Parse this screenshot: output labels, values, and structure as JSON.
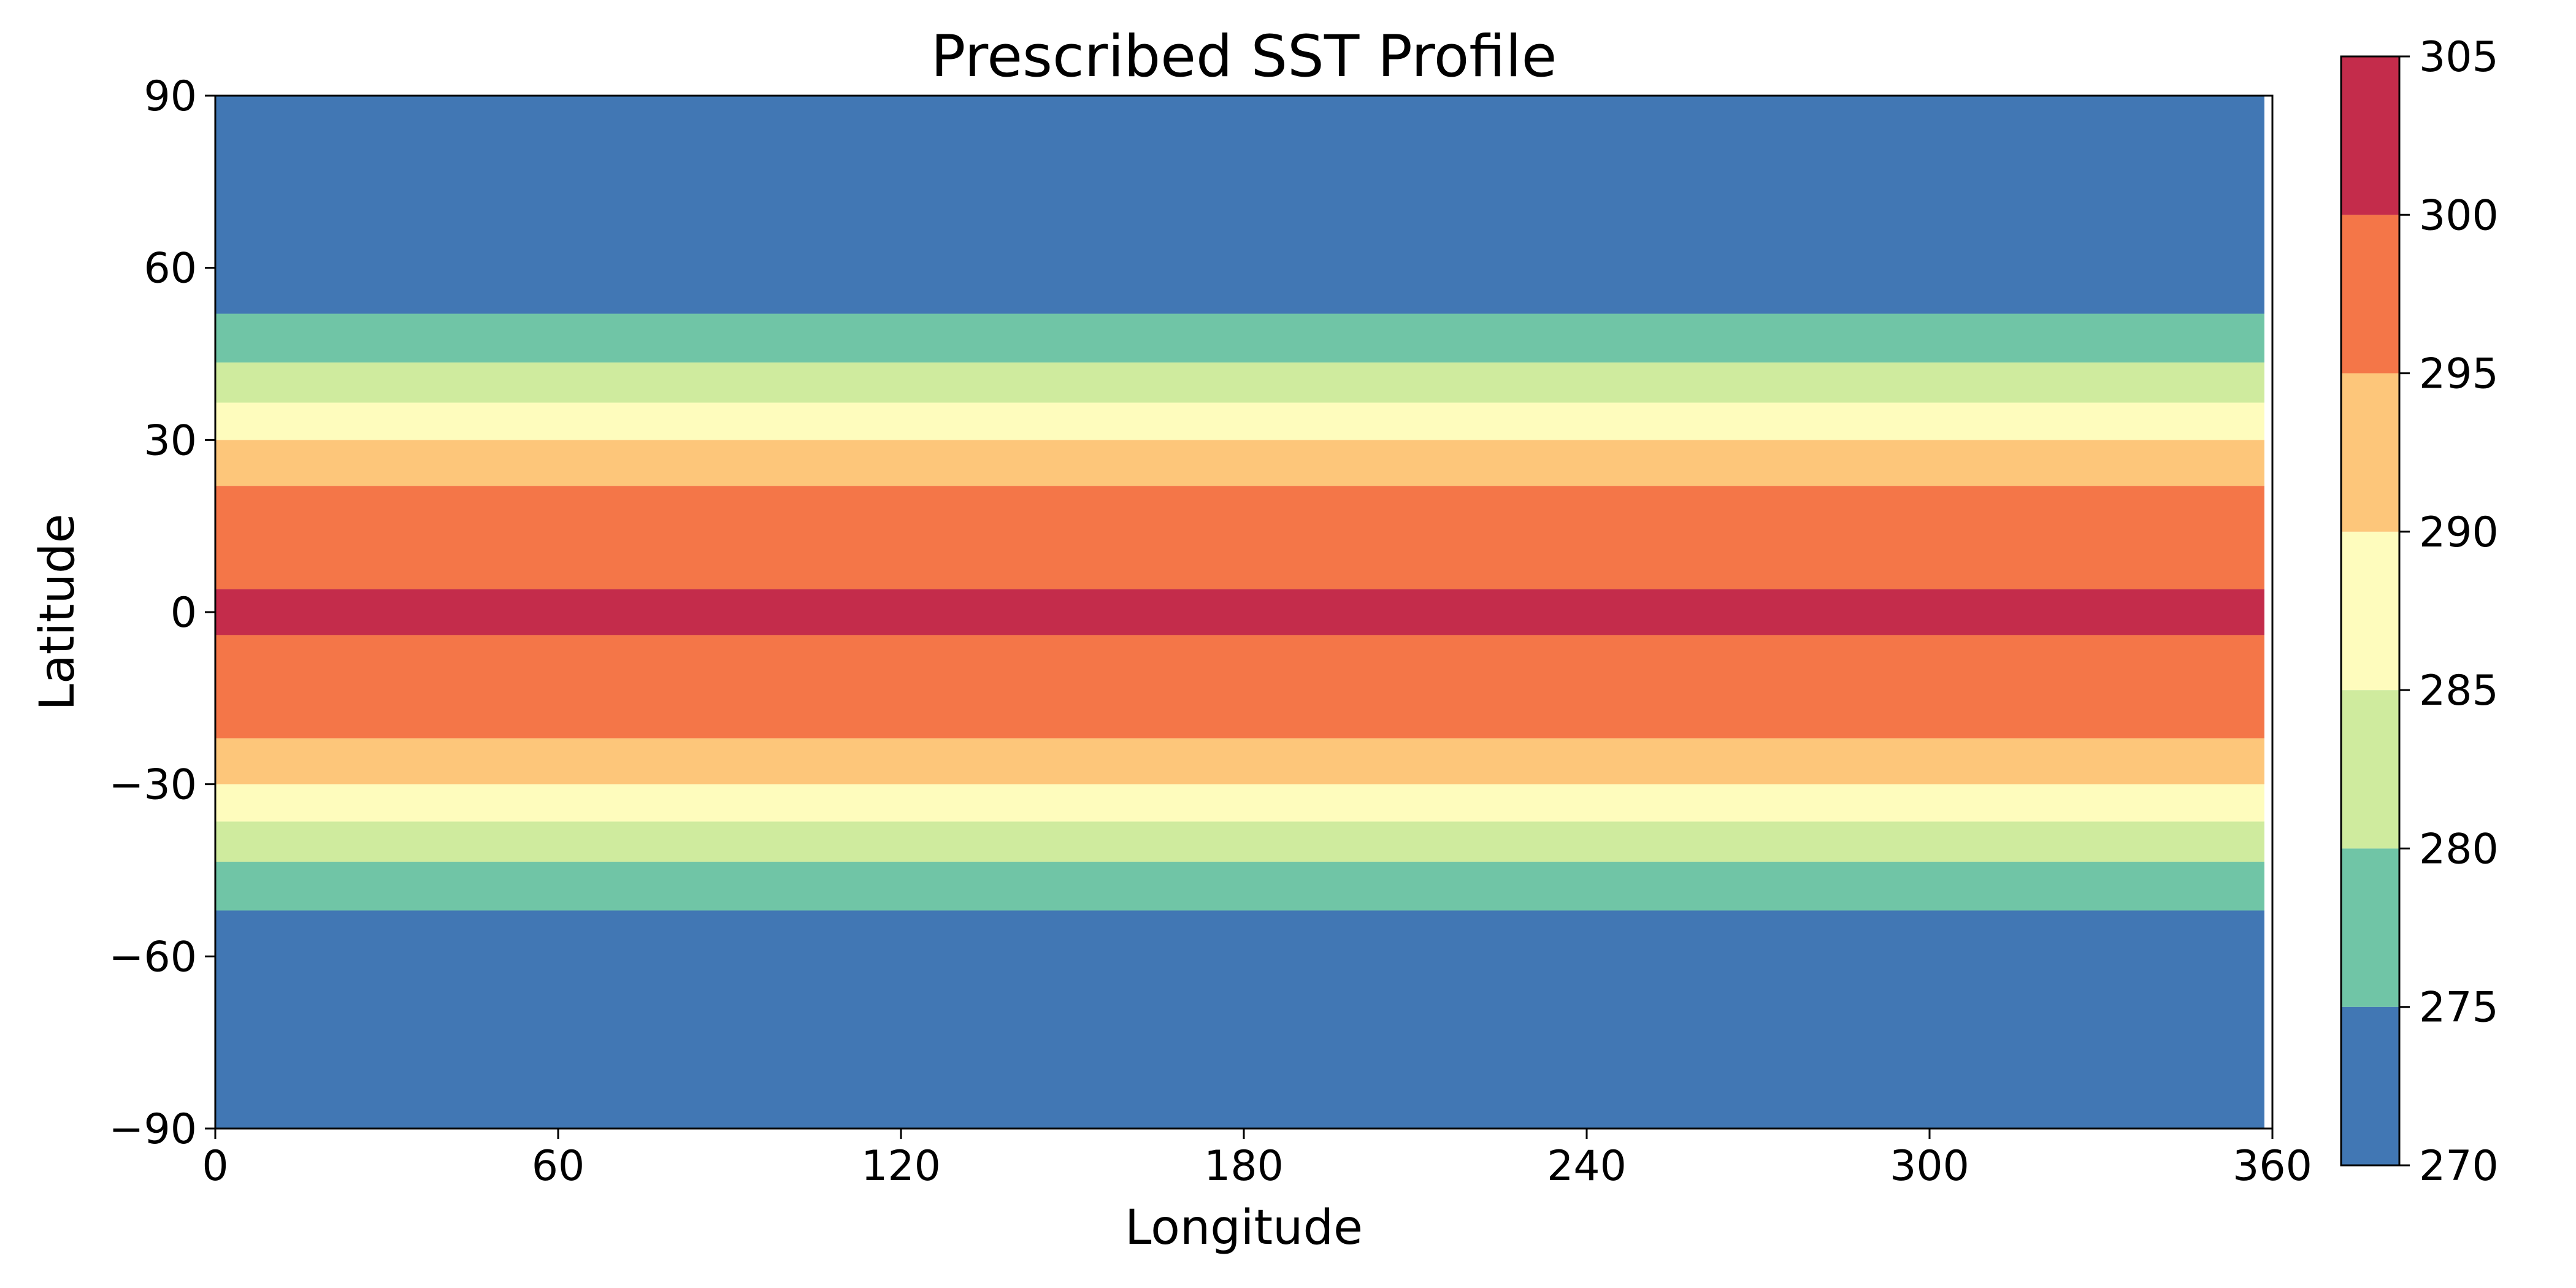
{
  "chart_data": {
    "type": "heatmap",
    "title": "Prescribed SST Profile",
    "xlabel": "Longitude",
    "ylabel": "Latitude",
    "xlim": [
      0,
      360
    ],
    "ylim": [
      -90,
      90
    ],
    "x_ticks": [
      0,
      60,
      120,
      180,
      240,
      300,
      360
    ],
    "y_ticks": [
      -90,
      -60,
      -30,
      0,
      30,
      60,
      90
    ],
    "x_tick_labels": [
      "0",
      "60",
      "120",
      "180",
      "240",
      "300",
      "360"
    ],
    "y_tick_labels": [
      "−90",
      "−60",
      "−30",
      "0",
      "30",
      "60",
      "90"
    ],
    "data_x_extent": [
      0,
      358.6
    ],
    "colorbar": {
      "levels": [
        270,
        275,
        280,
        285,
        290,
        295,
        300,
        305
      ],
      "tick_labels": [
        "270",
        "275",
        "280",
        "285",
        "290",
        "295",
        "300",
        "305"
      ],
      "colors": [
        "#4177b4",
        "#70c5a6",
        "#cfeb9e",
        "#fefcbd",
        "#fdc67a",
        "#f47648",
        "#c42c4b"
      ]
    },
    "bands": [
      {
        "lat_min": 52,
        "lat_max": 90,
        "sst_range": [
          270,
          275
        ]
      },
      {
        "lat_min": 43.5,
        "lat_max": 52,
        "sst_range": [
          275,
          280
        ]
      },
      {
        "lat_min": 36.5,
        "lat_max": 43.5,
        "sst_range": [
          280,
          285
        ]
      },
      {
        "lat_min": 30,
        "lat_max": 36.5,
        "sst_range": [
          285,
          290
        ]
      },
      {
        "lat_min": 22,
        "lat_max": 30,
        "sst_range": [
          290,
          295
        ]
      },
      {
        "lat_min": 4,
        "lat_max": 22,
        "sst_range": [
          295,
          300
        ]
      },
      {
        "lat_min": -4,
        "lat_max": 4,
        "sst_range": [
          300,
          305
        ]
      },
      {
        "lat_min": -22,
        "lat_max": -4,
        "sst_range": [
          295,
          300
        ]
      },
      {
        "lat_min": -30,
        "lat_max": -22,
        "sst_range": [
          290,
          295
        ]
      },
      {
        "lat_min": -36.5,
        "lat_max": -30,
        "sst_range": [
          285,
          290
        ]
      },
      {
        "lat_min": -43.5,
        "lat_max": -36.5,
        "sst_range": [
          280,
          285
        ]
      },
      {
        "lat_min": -52,
        "lat_max": -43.5,
        "sst_range": [
          275,
          280
        ]
      },
      {
        "lat_min": -90,
        "lat_max": -52,
        "sst_range": [
          270,
          275
        ]
      }
    ]
  }
}
